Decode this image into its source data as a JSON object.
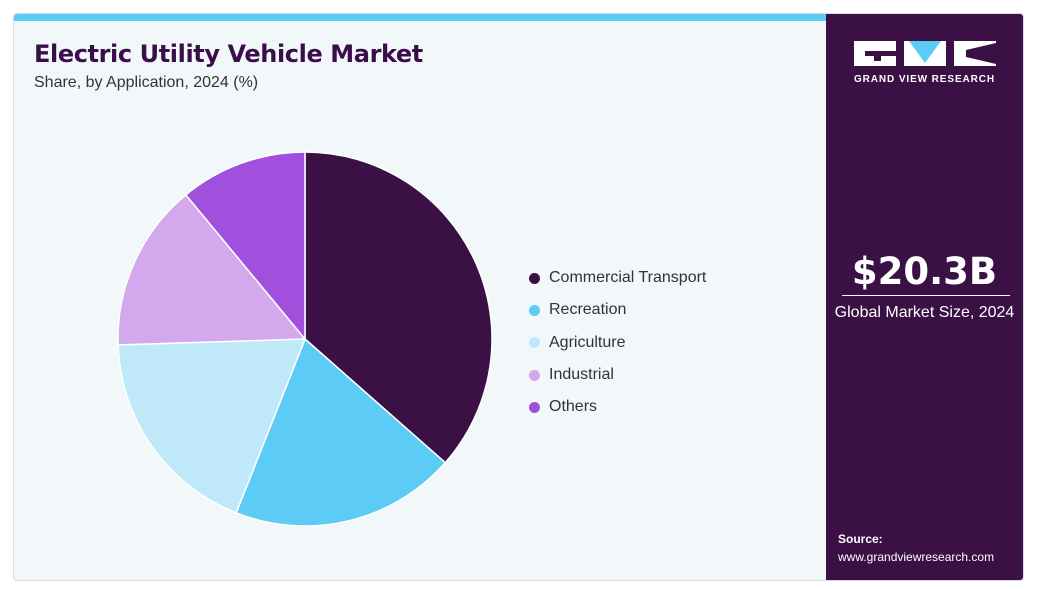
{
  "header": {
    "title": "Electric Utility Vehicle Market",
    "subtitle": "Share, by Application, 2024 (%)"
  },
  "colors": {
    "accent_bar": "#5ccbf5",
    "side_panel": "#3b1145",
    "title": "#3a0e48"
  },
  "chart_data": {
    "type": "pie",
    "title": "Electric Utility Vehicle Market",
    "subtitle": "Share, by Application, 2024 (%)",
    "legend_position": "right",
    "slices": [
      {
        "label": "Commercial Transport",
        "value": 36.5,
        "color": "#3b1145"
      },
      {
        "label": "Recreation",
        "value": 19.5,
        "color": "#5ccbf5"
      },
      {
        "label": "Agriculture",
        "value": 18.5,
        "color": "#bfe9f8"
      },
      {
        "label": "Industrial",
        "value": 14.5,
        "color": "#d4a8ec"
      },
      {
        "label": "Others",
        "value": 11.0,
        "color": "#a050dc"
      }
    ]
  },
  "sidebar": {
    "logo_text": "GRAND VIEW RESEARCH",
    "stat_value": "$20.3B",
    "stat_label": "Global Market Size, 2024",
    "source_label": "Source:",
    "source_url": "www.grandviewresearch.com"
  }
}
